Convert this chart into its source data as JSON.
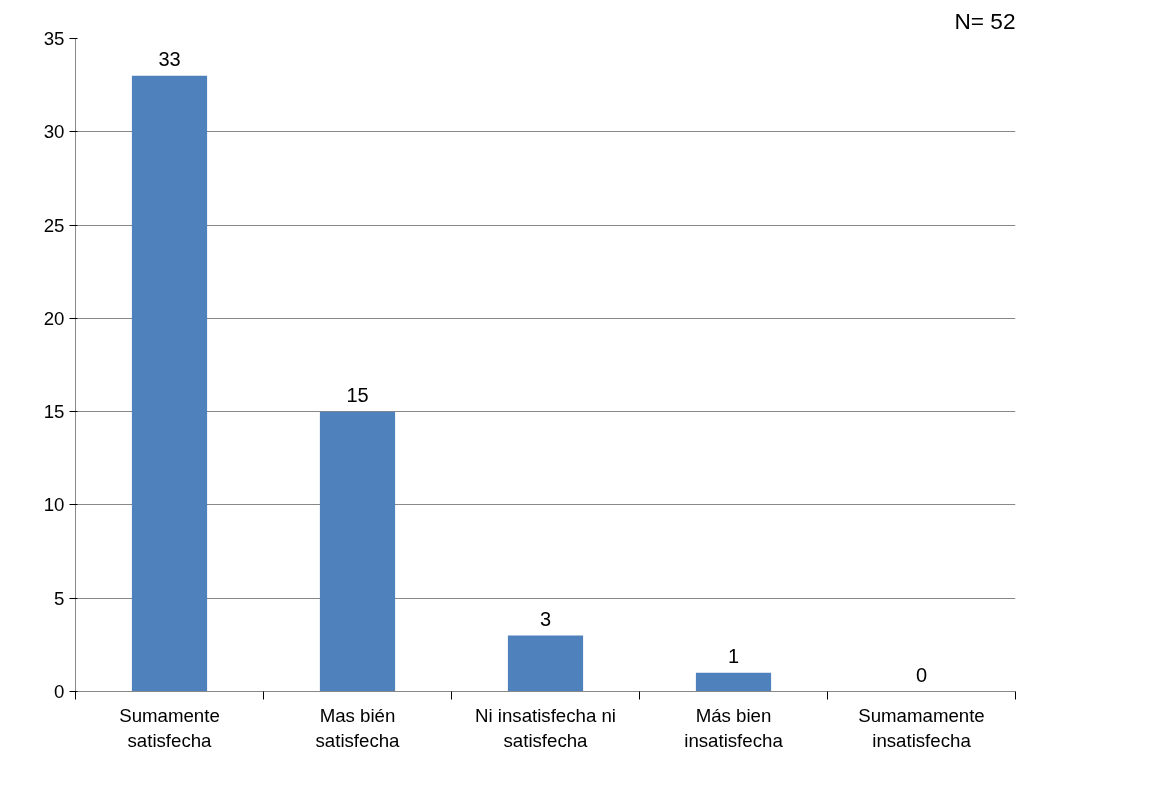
{
  "chart_data": {
    "type": "bar",
    "categories": [
      "Sumamente\nsatisfecha",
      "Mas bién\nsatisfecha",
      "Ni insatisfecha ni\nsatisfecha",
      "Más bien\ninsatisfecha",
      "Sumamamente\ninsatisfecha"
    ],
    "values": [
      33,
      15,
      3,
      1,
      0
    ],
    "color": "#4f81bd",
    "ylim": [
      0,
      35
    ],
    "yticks": [
      0,
      5,
      10,
      15,
      20,
      25,
      30,
      35
    ],
    "grid": "y",
    "data_labels": true,
    "annotations": [
      "N= 52"
    ]
  }
}
